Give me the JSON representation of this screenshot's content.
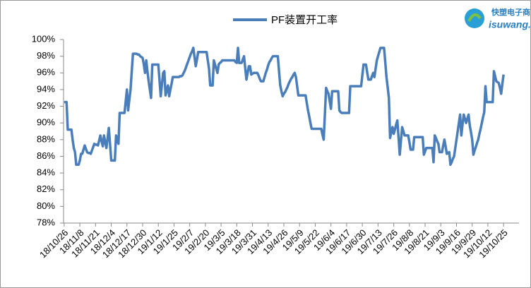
{
  "chart_data": {
    "type": "line",
    "logo": {
      "cn": "快塑电子商",
      "en": "isuwang.c"
    },
    "categories": [
      "18/10/26",
      null,
      null,
      null,
      null,
      null,
      null,
      null,
      null,
      null,
      null,
      null,
      null,
      "18/11/8",
      null,
      null,
      null,
      null,
      null,
      null,
      null,
      null,
      null,
      null,
      null,
      null,
      "18/11/21",
      null,
      null,
      null,
      null,
      null,
      null,
      null,
      null,
      null,
      null,
      null,
      null,
      "18/12/4",
      null,
      null,
      null,
      null,
      null,
      null,
      null,
      null,
      null,
      null,
      null,
      null,
      "18/12/17",
      null,
      null,
      null,
      null,
      null,
      null,
      null,
      null,
      null,
      null,
      null,
      null,
      "18/12/30",
      null,
      null,
      null,
      null,
      null,
      null,
      null,
      null,
      null,
      null,
      null,
      null,
      "19/1/12",
      null,
      null,
      null,
      null,
      null,
      null,
      null,
      null,
      null,
      null,
      null,
      null,
      "19/1/25",
      null,
      null,
      null,
      null,
      null,
      null,
      null,
      null,
      null,
      null,
      null,
      null,
      "19/2/7",
      null,
      null,
      null,
      null,
      null,
      null,
      null,
      null,
      null,
      null,
      null,
      null,
      "19/2/20",
      null,
      null,
      null,
      null,
      null,
      null,
      null,
      null,
      null,
      null,
      null,
      null,
      "19/3/5",
      null,
      null,
      null,
      null,
      null,
      null,
      null,
      null,
      null,
      null,
      null,
      null,
      "19/3/18",
      null,
      null,
      null,
      null,
      null,
      null,
      null,
      null,
      null,
      null,
      null,
      null,
      "19/3/31",
      null,
      null,
      null,
      null,
      null,
      null,
      null,
      null,
      null,
      null,
      null,
      null,
      "19/4/13",
      null,
      null,
      null,
      null,
      null,
      null,
      null,
      null,
      null,
      null,
      null,
      null,
      "19/4/26",
      null,
      null,
      null,
      null,
      null,
      null,
      null,
      null,
      null,
      null,
      null,
      null,
      "19/5/9",
      null,
      null,
      null,
      null,
      null,
      null,
      null,
      null,
      null,
      null,
      null,
      null,
      "19/5/22",
      null,
      null,
      null,
      null,
      null,
      null,
      null,
      null,
      null,
      null,
      null,
      null,
      "19/6/4",
      null,
      null,
      null,
      null,
      null,
      null,
      null,
      null,
      null,
      null,
      null,
      null,
      "19/6/17",
      null,
      null,
      null,
      null,
      null,
      null,
      null,
      null,
      null,
      null,
      null,
      null,
      "19/6/30",
      null,
      null,
      null,
      null,
      null,
      null,
      null,
      null,
      null,
      null,
      null,
      null,
      "19/7/13",
      null,
      null,
      null,
      null,
      null,
      null,
      null,
      null,
      null,
      null,
      null,
      null,
      "19/7/26",
      null,
      null,
      null,
      null,
      null,
      null,
      null,
      null,
      null,
      null,
      null,
      null,
      "19/8/8",
      null,
      null,
      null,
      null,
      null,
      null,
      null,
      null,
      null,
      null,
      null,
      null,
      "19/8/21",
      null,
      null,
      null,
      null,
      null,
      null,
      null,
      null,
      null,
      null,
      null,
      null,
      "19/9/3",
      null,
      null,
      null,
      null,
      null,
      null,
      null,
      null,
      null,
      null,
      null,
      null,
      "19/9/16",
      null,
      null,
      null,
      null,
      null,
      null,
      null,
      null,
      null,
      null,
      null,
      null,
      "19/9/29",
      null,
      null,
      null,
      null,
      null,
      null,
      null,
      null,
      null,
      null,
      null,
      null,
      "19/10/12",
      null,
      null,
      null,
      null,
      null,
      null,
      null,
      null,
      null,
      null,
      null,
      null,
      "19/10/25"
    ],
    "series": [
      {
        "name": "PF装置开工率",
        "color": "#4a7ebb",
        "values": [
          92.5,
          92.5,
          92.5,
          89.2,
          89.2,
          89.2,
          89.2,
          88,
          87,
          86.5,
          85,
          85,
          85,
          85.5,
          86.3,
          86.3,
          86.8,
          87.3,
          86.9,
          86.5,
          86.4,
          86.4,
          86.3,
          86.7,
          87.1,
          87.5,
          87.4,
          87.4,
          87.3,
          87.9,
          88.5,
          87.8,
          87.2,
          88.5,
          87.7,
          87,
          88.2,
          89.4,
          87.5,
          85.5,
          85.5,
          85.5,
          85.5,
          88.5,
          88,
          87.5,
          91.2,
          91.2,
          91.2,
          91.2,
          91.2,
          92.6,
          94,
          91.5,
          92.8,
          94,
          96.2,
          98.3,
          98.3,
          98.3,
          98.3,
          98.2,
          98.2,
          98,
          97.9,
          97.8,
          97,
          96,
          97.5,
          96.2,
          95,
          94,
          93,
          97,
          97,
          97,
          97,
          97,
          97,
          95.1,
          93.2,
          94.6,
          96,
          96.2,
          93.3,
          93.9,
          94.5,
          93.2,
          94,
          94.7,
          95.5,
          95.5,
          95.5,
          95.5,
          95.5,
          95.5,
          95.6,
          95.6,
          95.7,
          96,
          96.3,
          96.7,
          97.1,
          97.5,
          97.9,
          98.3,
          98.6,
          99,
          97.9,
          96.8,
          97.6,
          98.5,
          98.5,
          98.5,
          98.5,
          98.5,
          98.5,
          98.5,
          98.5,
          97.5,
          96.5,
          94.5,
          94.5,
          94.5,
          97.5,
          97,
          96.5,
          96,
          97,
          97.2,
          97.3,
          97.5,
          97.5,
          97.5,
          97.5,
          97.5,
          97.5,
          97.5,
          97.5,
          97.5,
          97.5,
          97.5,
          97.3,
          97.2,
          99,
          97.2,
          97.2,
          97.2,
          97.6,
          98,
          96.6,
          95.2,
          96,
          96.8,
          96.8,
          95.8,
          95.9,
          96,
          96,
          96,
          96,
          95.7,
          95.3,
          95,
          95,
          95,
          95.5,
          96,
          96.4,
          96.9,
          97.3,
          97.5,
          97.8,
          98,
          98,
          98,
          98,
          98,
          96.2,
          94.5,
          93.8,
          93.2,
          93.5,
          93.7,
          94,
          94.3,
          94.7,
          95,
          95.3,
          95.5,
          95.8,
          96,
          95.5,
          94.4,
          93.3,
          93.3,
          93.3,
          93.3,
          93.3,
          93.3,
          93.3,
          92.4,
          91.5,
          90.8,
          90,
          89.3,
          89.3,
          89.3,
          89.3,
          89.3,
          89.3,
          89.3,
          89.3,
          89.3,
          88.6,
          88,
          91.1,
          94.2,
          93.8,
          93.5,
          92.6,
          91.7,
          93.8,
          93.8,
          93.8,
          93.8,
          93.8,
          93.8,
          91.5,
          91.3,
          91.2,
          91.2,
          91.2,
          91.2,
          91.2,
          91.2,
          91.2,
          94.4,
          94.4,
          94.4,
          94.4,
          94.4,
          94.4,
          94.4,
          94.4,
          94.4,
          94.4,
          95.7,
          97,
          97,
          97,
          96.1,
          95.2,
          95.2,
          95.2,
          95.6,
          96,
          95.5,
          96.5,
          97.5,
          98,
          98.5,
          99,
          99,
          99,
          99,
          97.3,
          95.5,
          94.3,
          93,
          88.2,
          88.9,
          89.5,
          88.7,
          89.2,
          89.8,
          90.3,
          88.3,
          86.2,
          87.9,
          89.5,
          89,
          88.5,
          88.5,
          88.5,
          88.5,
          87.7,
          86.8,
          86.8,
          86.8,
          88.3,
          88.3,
          88.3,
          88.3,
          88.3,
          88.3,
          88.3,
          88.3,
          86.2,
          86.6,
          87,
          87,
          87,
          87,
          87,
          87,
          85.3,
          88.5,
          88.2,
          87.8,
          87.5,
          86.5,
          86.5,
          86.5,
          87.3,
          88,
          87.2,
          86.3,
          86.4,
          86.5,
          85,
          85.3,
          85.7,
          86,
          87,
          88,
          89,
          90,
          91,
          88.5,
          89.8,
          91,
          90.5,
          90,
          90.5,
          91,
          89.7,
          88.9,
          88,
          86.2,
          86.7,
          87.1,
          87.6,
          88,
          88.7,
          89.3,
          90,
          90.7,
          91.3,
          94.4,
          92.5,
          92.5,
          92.5,
          92.5,
          92.5,
          92.5,
          96.2,
          95.6,
          95,
          94.9,
          94.8,
          94.2,
          93.5,
          94.7,
          95.8
        ]
      }
    ],
    "ylim": [
      78,
      100
    ],
    "yticks": [
      {
        "value": 78,
        "label": "78%"
      },
      {
        "value": 80,
        "label": "80%"
      },
      {
        "value": 82,
        "label": "82%"
      },
      {
        "value": 84,
        "label": "84%"
      },
      {
        "value": 86,
        "label": "86%"
      },
      {
        "value": 88,
        "label": "88%"
      },
      {
        "value": 90,
        "label": "90%"
      },
      {
        "value": 92,
        "label": "92%"
      },
      {
        "value": 94,
        "label": "94%"
      },
      {
        "value": 96,
        "label": "96%"
      },
      {
        "value": 98,
        "label": "98%"
      },
      {
        "value": 100,
        "label": "100%"
      }
    ],
    "grid": false
  }
}
